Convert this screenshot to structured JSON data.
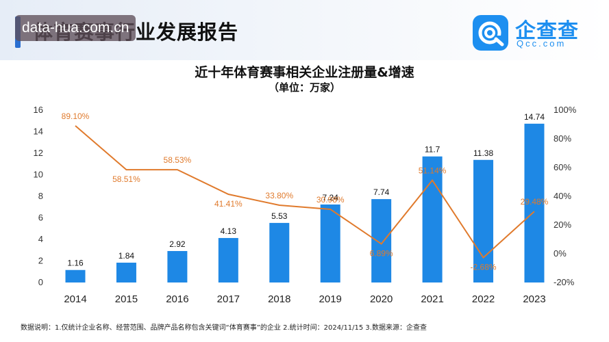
{
  "header": {
    "report_title": "体育赛事行业发展报告",
    "watermark": "data-hua.com.cn",
    "logo_name": "企查查",
    "logo_sub": "Qcc.com"
  },
  "chart_data": {
    "type": "bar",
    "title": "近十年体育赛事相关企业注册量&增速",
    "subtitle": "（单位：万家）",
    "categories": [
      "2014",
      "2015",
      "2016",
      "2017",
      "2018",
      "2019",
      "2020",
      "2021",
      "2022",
      "2023"
    ],
    "series": [
      {
        "type": "bar",
        "axis": "left",
        "values": [
          1.16,
          1.84,
          2.92,
          4.13,
          5.53,
          7.24,
          7.74,
          11.7,
          11.38,
          14.74
        ],
        "labels": [
          "1.16",
          "1.84",
          "2.92",
          "4.13",
          "5.53",
          "7.24",
          "7.74",
          "11.7",
          "11.38",
          "14.74"
        ]
      },
      {
        "type": "line",
        "axis": "right",
        "values": [
          89.1,
          58.51,
          58.53,
          41.41,
          33.8,
          30.98,
          6.89,
          51.14,
          -2.68,
          29.48
        ],
        "labels": [
          "89.10%",
          "58.51%",
          "58.53%",
          "41.41%",
          "33.80%",
          "30.98%",
          "6.89%",
          "51.14%",
          "-2.68%",
          "29.48%"
        ]
      }
    ],
    "y_left": {
      "range": [
        0,
        16
      ],
      "ticks": [
        "0",
        "2",
        "4",
        "6",
        "8",
        "10",
        "12",
        "14",
        "16"
      ]
    },
    "y_right": {
      "range": [
        -20,
        100
      ],
      "ticks": [
        "-20%",
        "0%",
        "20%",
        "40%",
        "60%",
        "80%",
        "100%"
      ]
    },
    "grid": false,
    "colors": {
      "bar": "#1e88e5",
      "line": "#e07a2c"
    }
  },
  "footnote": "数据说明：1.仅统计企业名称、经营范围、品牌产品名称包含关键词“体育赛事”的企业  2.统计时间：2024/11/15  3.数据来源：企查查"
}
